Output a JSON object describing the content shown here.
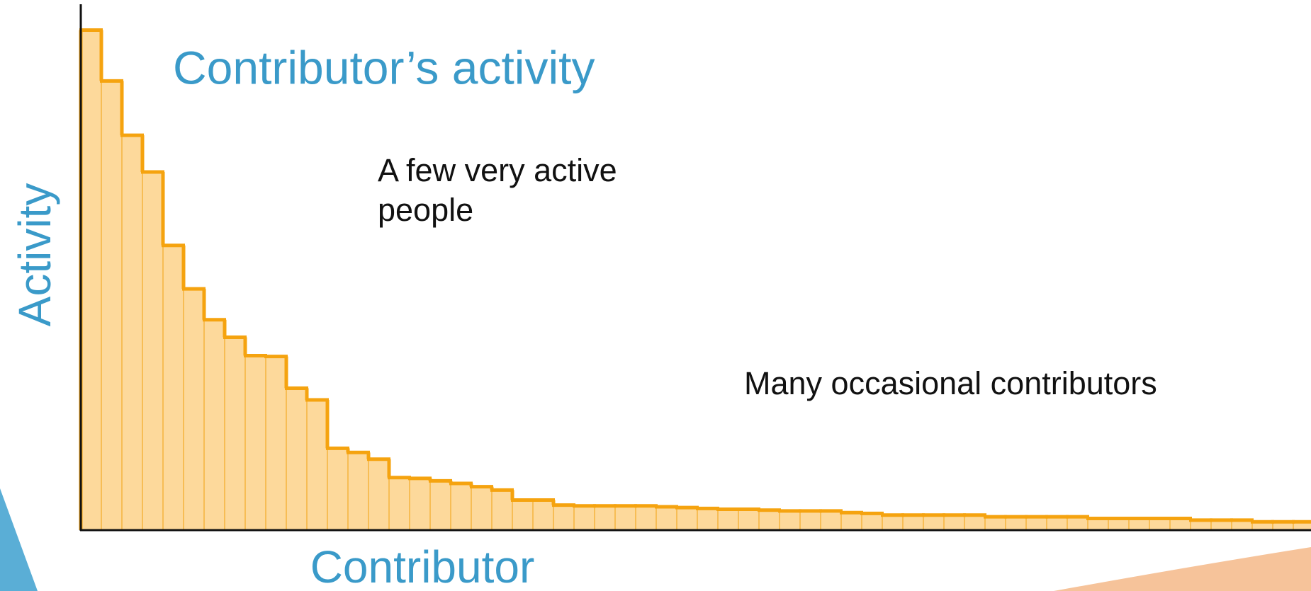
{
  "chart_data": {
    "type": "bar",
    "title": "Contributor’s activity",
    "xlabel": "Contributor",
    "ylabel": "Activity",
    "annotations": [
      {
        "lines": [
          "A few very active",
          "people"
        ]
      },
      {
        "lines": [
          "Many occasional contributors"
        ]
      }
    ],
    "values": [
      599,
      538,
      473,
      429,
      341,
      289,
      252,
      231,
      209,
      208,
      170,
      156,
      98,
      93,
      85,
      63,
      62,
      59,
      56,
      52,
      48,
      36,
      36,
      30,
      29,
      29,
      29,
      29,
      28,
      27,
      26,
      25,
      25,
      24,
      23,
      23,
      23,
      21,
      20,
      18,
      18,
      18,
      18,
      18,
      16,
      16,
      16,
      16,
      16,
      14,
      14,
      14,
      14,
      14,
      12,
      12,
      12,
      10,
      10,
      10
    ],
    "ylim": [
      0,
      635
    ],
    "fill": "#fdd99b",
    "color": "#f5a30f"
  }
}
